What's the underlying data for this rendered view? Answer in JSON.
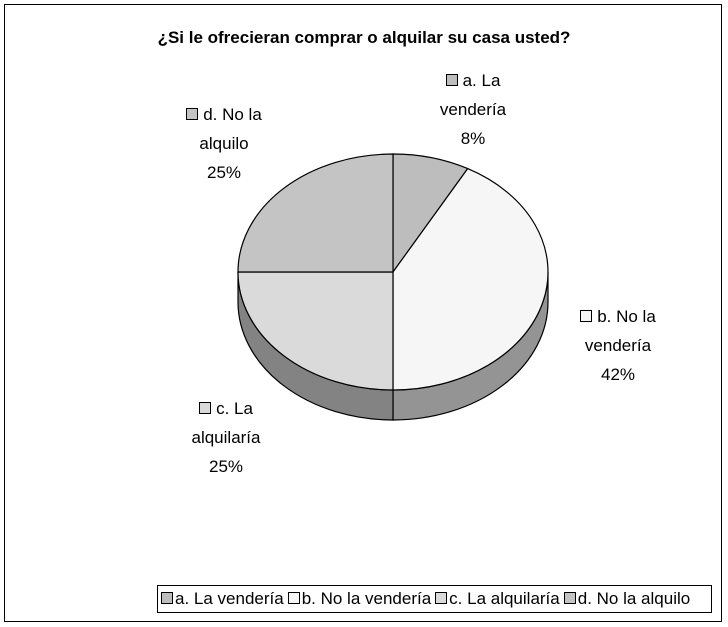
{
  "chart_data": {
    "type": "pie",
    "title": "¿Si le ofrecieran comprar o alquilar su casa usted?",
    "categories": [
      "a. La vendería",
      "b. No la vendería",
      "c. La alquilaría",
      "d. No la alquilo"
    ],
    "values": [
      8,
      42,
      25,
      25
    ],
    "value_labels": [
      "8%",
      "42%",
      "25%",
      "25%"
    ],
    "colors": [
      "#bdbdbd",
      "#f6f6f6",
      "#dadada",
      "#c4c4c4"
    ],
    "legend": "bottom"
  }
}
